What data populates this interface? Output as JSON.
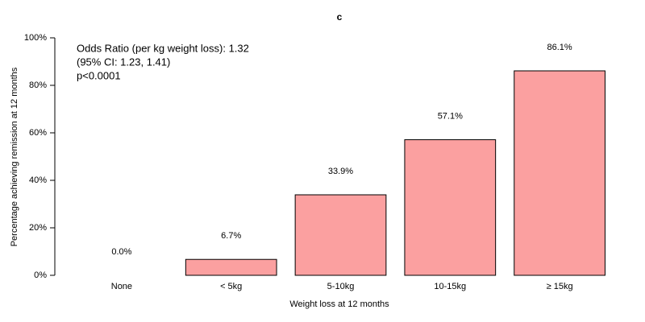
{
  "chart_data": {
    "type": "bar",
    "title": "c",
    "x_label": "Weight loss at 12 months",
    "y_label": "Percentage achieving remission at 12 months",
    "annotations": [
      "Odds Ratio (per kg weight loss): 1.32",
      "(95% CI: 1.23, 1.41)",
      "p<0.0001"
    ],
    "categories": [
      "None",
      "< 5kg",
      "5-10kg",
      "10-15kg",
      "≥ 15kg"
    ],
    "values": [
      0,
      6.7,
      33.9,
      57.1,
      86.1
    ],
    "value_labels": [
      "0.0%",
      "6.7%",
      "33.9%",
      "57.1%",
      "86.1%"
    ],
    "color": "#fba0a0",
    "ylim": [
      0,
      100
    ],
    "yticks": [
      {
        "value": 0,
        "label": "0%"
      },
      {
        "value": 20,
        "label": "20%"
      },
      {
        "value": 40,
        "label": "40%"
      },
      {
        "value": 60,
        "label": "60%"
      },
      {
        "value": 80,
        "label": "80%"
      },
      {
        "value": 100,
        "label": "100%"
      }
    ],
    "grid": false
  }
}
